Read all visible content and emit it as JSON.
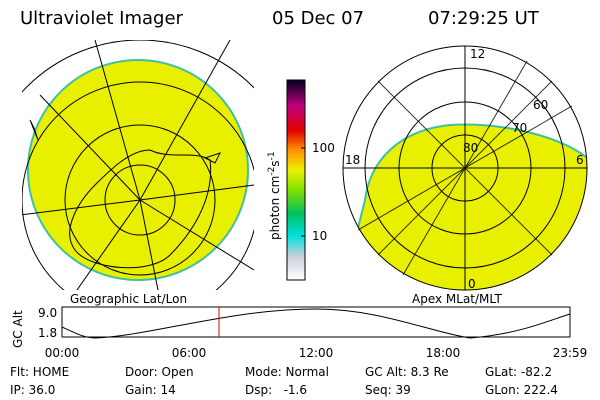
{
  "header": {
    "instrument": "Ultraviolet Imager",
    "date": "05 Dec 07",
    "time": "07:29:25 UT"
  },
  "left_map": {
    "label": "Geographic Lat/Lon"
  },
  "right_map": {
    "label": "Apex MLat/MLT",
    "mlt_labels": [
      "12",
      "18",
      "6",
      "0"
    ],
    "lat_labels": [
      "60",
      "70",
      "80"
    ]
  },
  "colorbar": {
    "unit": [
      "photon cm",
      "-2",
      "s",
      "-1"
    ],
    "ticks": [
      "100",
      "10"
    ]
  },
  "altitude_plot": {
    "ylabel": "GC Alt",
    "yticks": [
      "9.0",
      "1.8"
    ],
    "xticks": [
      "00:00",
      "06:00",
      "12:00",
      "18:00",
      "23:59"
    ]
  },
  "info": [
    [
      "Flt: HOME",
      "Door: Open",
      "Mode: Normal",
      "GC Alt: 8.3 Re",
      "GLat: -82.2"
    ],
    [
      "IP: 36.0",
      "Gain: 14",
      "Dsp:   -1.6",
      "Seq: 39",
      "GLon: 222.4"
    ]
  ]
}
